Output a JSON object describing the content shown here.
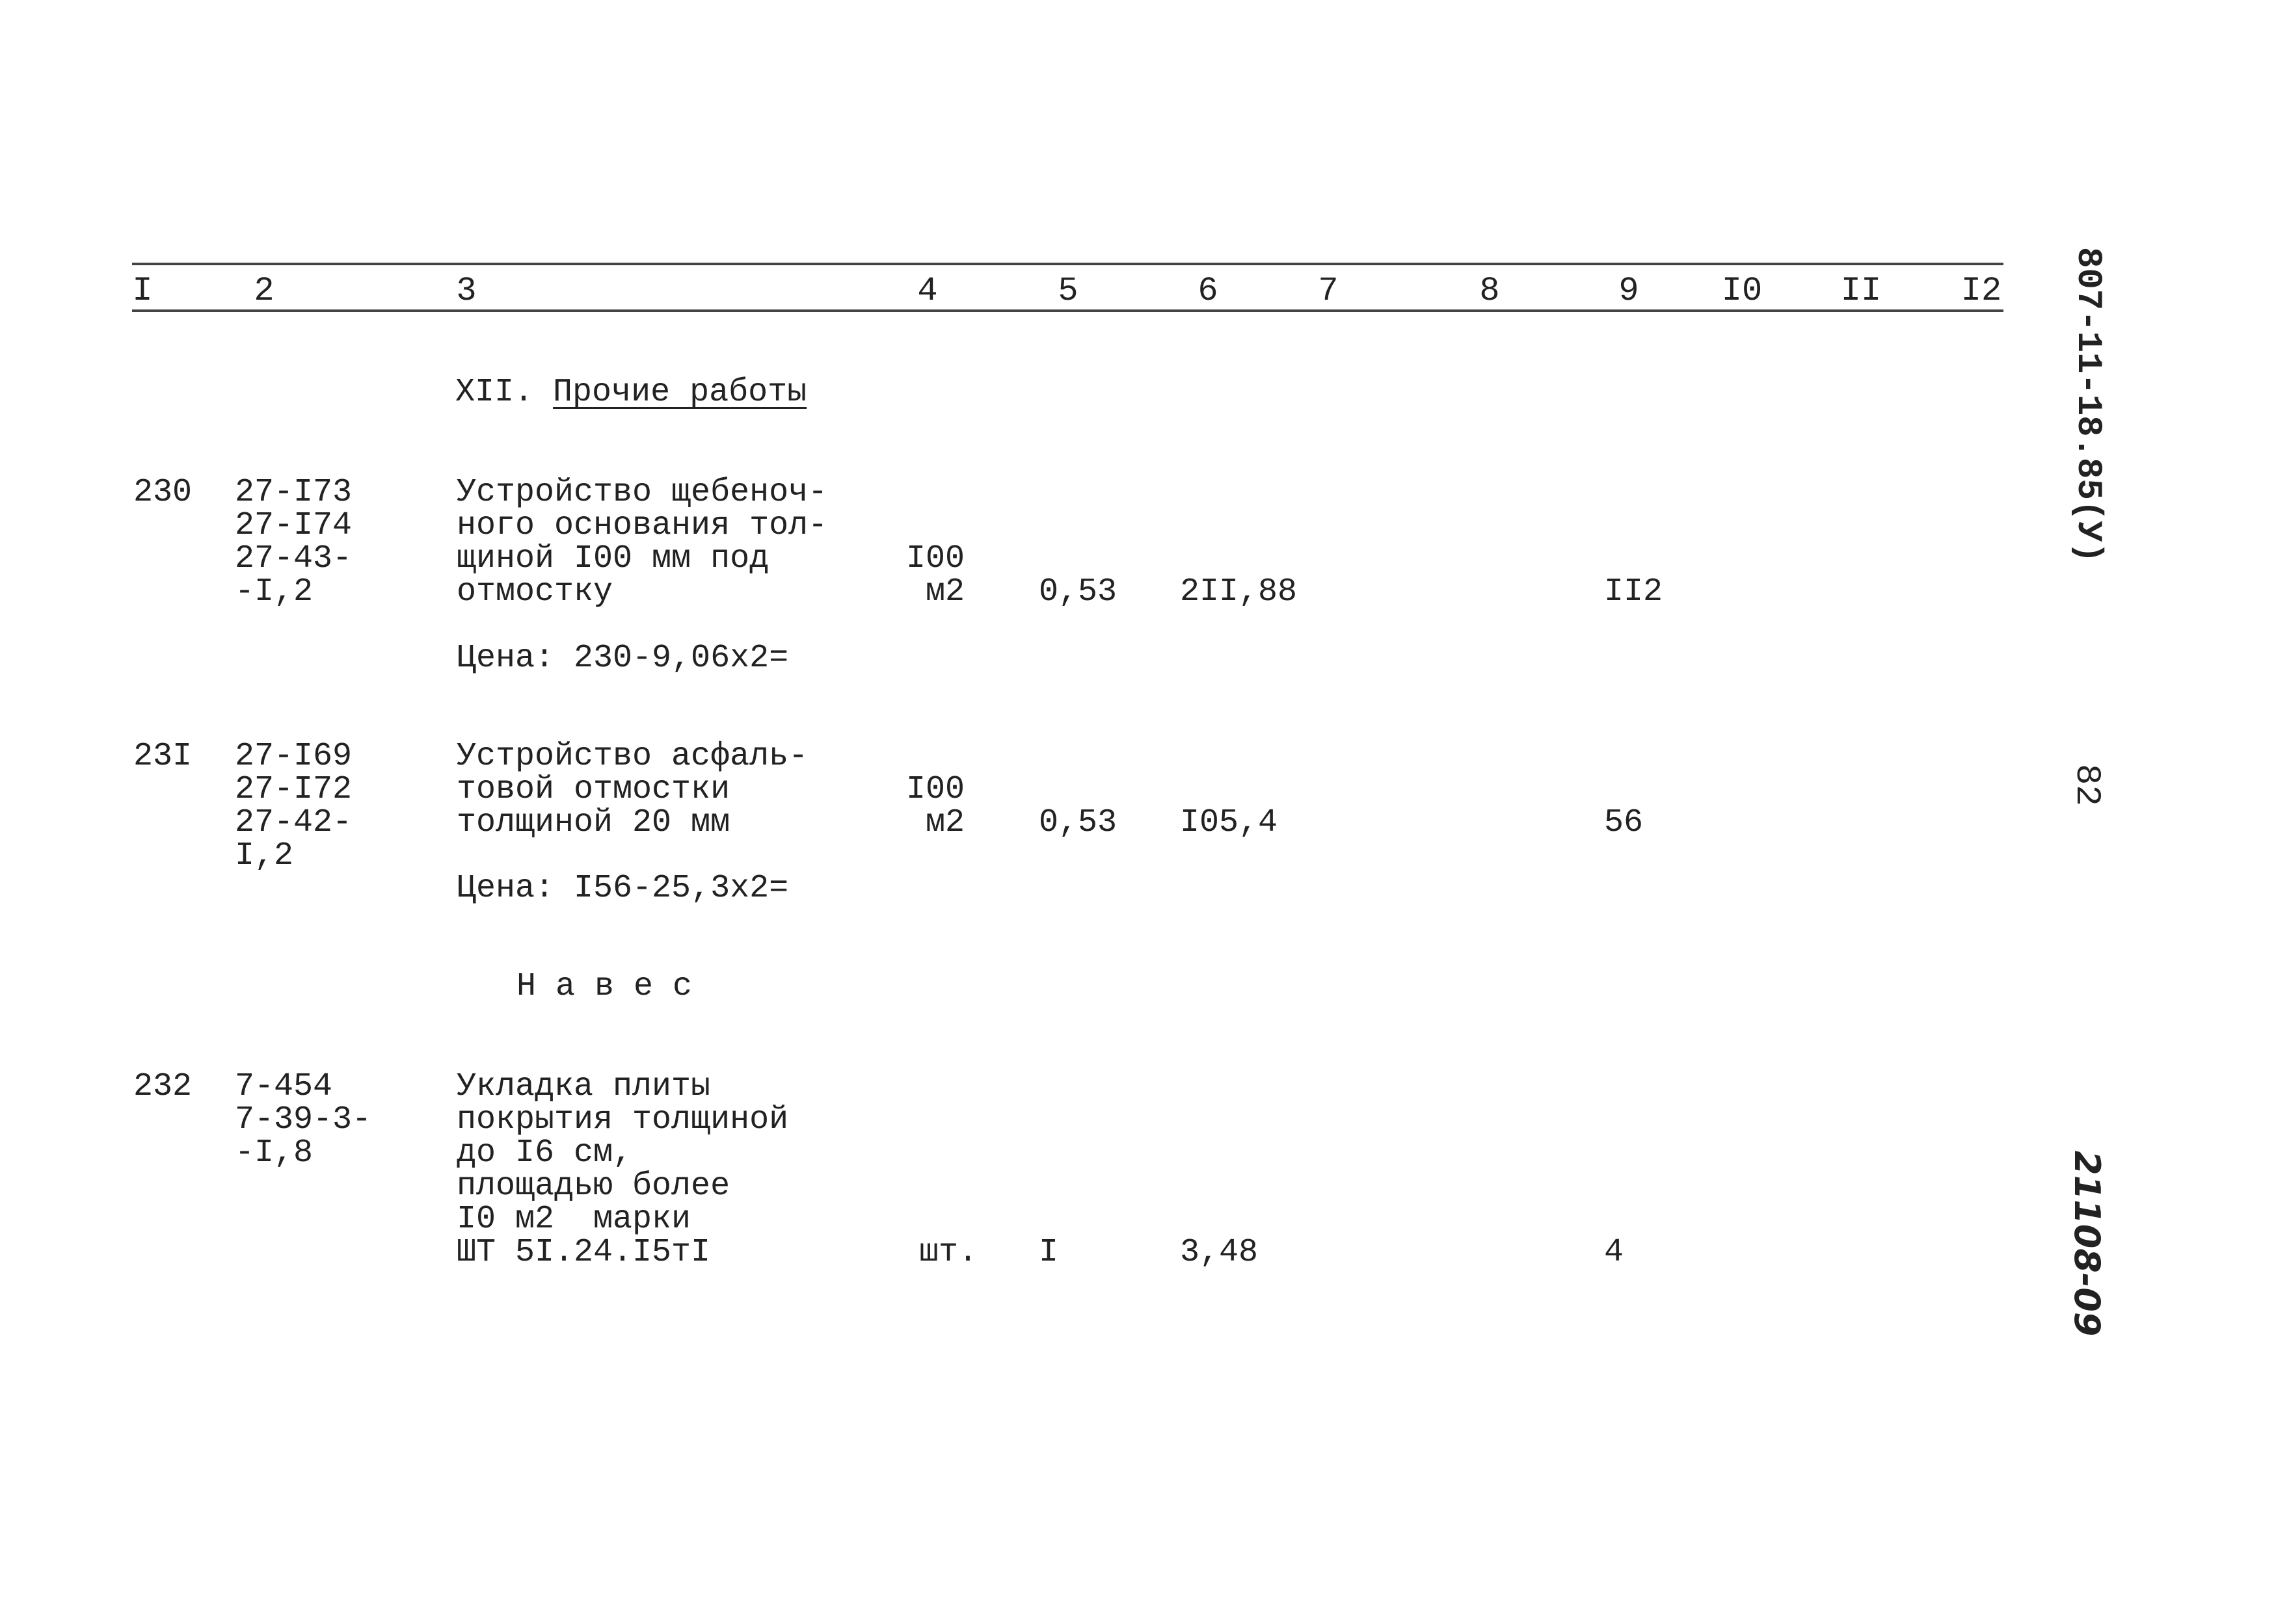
{
  "header_columns": [
    "I",
    "2",
    "3",
    "4",
    "5",
    "6",
    "7",
    "8",
    "9",
    "I0",
    "II",
    "I2"
  ],
  "section": {
    "number": "XII.",
    "title": "Прочие работы"
  },
  "subsection": "Н а в е с",
  "rows": [
    {
      "num": "230",
      "codes": [
        "27-I73",
        "27-I74",
        "27-43-",
        "-I,2"
      ],
      "description": [
        "Устройство щебеноч-",
        "ного основания тол-",
        "щиной I00 мм под",
        "отмостку"
      ],
      "unit": [
        "I00",
        "м2"
      ],
      "col5": "0,53",
      "col6": "2II,88",
      "col9": "II2",
      "price": "Цена: 230-9,06х2="
    },
    {
      "num": "23I",
      "codes": [
        "27-I69",
        "27-I72",
        "27-42-",
        "I,2"
      ],
      "description": [
        "Устройство асфаль-",
        "товой отмостки",
        "толщиной 20 мм"
      ],
      "unit": [
        "I00",
        "м2"
      ],
      "col5": "0,53",
      "col6": "I05,4",
      "col9": "56",
      "price": "Цена: I56-25,3х2="
    },
    {
      "num": "232",
      "codes": [
        "7-454",
        "7-39-3-",
        "-I,8"
      ],
      "description": [
        "Укладка плиты",
        "покрытия толщиной",
        "до I6 см,",
        "площадью более",
        "I0 м2  марки",
        "ШТ 5I.24.I5тI"
      ],
      "unit": [
        "шт."
      ],
      "col5": "I",
      "col6": "3,48",
      "col9": "4"
    }
  ],
  "margin": {
    "doc_code": "807-11-18.85(У)",
    "page": "82",
    "sheet_code": "21108-09"
  }
}
